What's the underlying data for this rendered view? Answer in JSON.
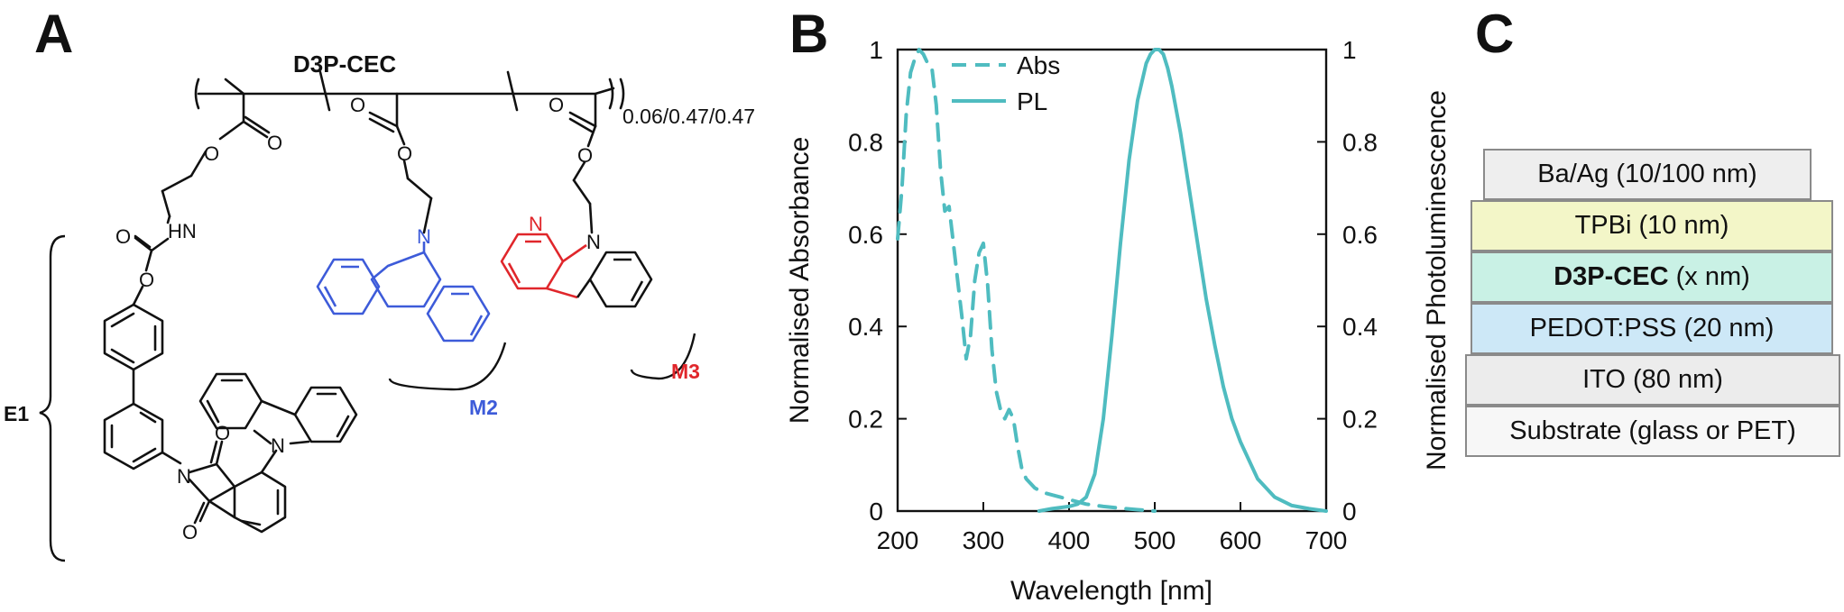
{
  "panels": {
    "a": "A",
    "b": "B",
    "c": "C"
  },
  "panel_a": {
    "polymer_name": "D3P-CEC",
    "ratio": "0.06/0.47/0.47",
    "labels": {
      "e1": "E1",
      "m2": "M2",
      "m3": "M3",
      "hn": "HN",
      "n": "N",
      "o": "O"
    },
    "colors": {
      "e1": "#111111",
      "m2": "#3d5bd9",
      "m3": "#e0262b"
    }
  },
  "chart_data": {
    "type": "line",
    "x_label": "Wavelength [nm]",
    "y_label_left": "Normalised Absorbance",
    "y_label_right": "Normalised Photoluminescence",
    "x_range": [
      200,
      700
    ],
    "y_range": [
      0,
      1
    ],
    "x_ticks": [
      "200",
      "300",
      "400",
      "500",
      "600",
      "700"
    ],
    "y_ticks": [
      "0",
      "0.2",
      "0.4",
      "0.6",
      "0.8",
      "1"
    ],
    "legend_position": "top-left",
    "line_color": "#4fbcc0",
    "series": [
      {
        "name": "Abs",
        "style": "dashed",
        "x": [
          200,
          205,
          210,
          215,
          220,
          225,
          230,
          235,
          240,
          245,
          250,
          255,
          260,
          265,
          270,
          275,
          280,
          285,
          290,
          295,
          300,
          305,
          310,
          315,
          320,
          325,
          330,
          335,
          340,
          345,
          350,
          360,
          370,
          380,
          390,
          400,
          420,
          440,
          460,
          480,
          500
        ],
        "y": [
          0.59,
          0.7,
          0.86,
          0.95,
          0.98,
          1.0,
          0.99,
          0.97,
          0.96,
          0.88,
          0.74,
          0.65,
          0.66,
          0.58,
          0.5,
          0.42,
          0.33,
          0.38,
          0.5,
          0.56,
          0.58,
          0.49,
          0.35,
          0.26,
          0.22,
          0.2,
          0.22,
          0.2,
          0.14,
          0.09,
          0.07,
          0.05,
          0.04,
          0.035,
          0.03,
          0.025,
          0.015,
          0.01,
          0.006,
          0.003,
          0.0
        ]
      },
      {
        "name": "PL",
        "style": "solid",
        "x": [
          365,
          380,
          400,
          410,
          420,
          430,
          440,
          450,
          460,
          470,
          480,
          490,
          495,
          500,
          505,
          510,
          515,
          520,
          530,
          540,
          550,
          560,
          570,
          580,
          590,
          600,
          620,
          640,
          660,
          680,
          700
        ],
        "y": [
          0.0,
          0.005,
          0.01,
          0.015,
          0.03,
          0.08,
          0.2,
          0.38,
          0.58,
          0.76,
          0.89,
          0.97,
          0.99,
          1.0,
          1.0,
          0.99,
          0.96,
          0.92,
          0.82,
          0.7,
          0.58,
          0.46,
          0.36,
          0.27,
          0.2,
          0.15,
          0.07,
          0.03,
          0.012,
          0.005,
          0.0
        ]
      }
    ]
  },
  "panel_c": {
    "layers": [
      {
        "label": "Ba/Ag (10/100 nm)",
        "color": "#eeeeee"
      },
      {
        "label": "TPBi (10 nm)",
        "color": "#f3f6c8"
      },
      {
        "label_bold": "D3P-CEC",
        "label_rest": " (x nm)",
        "color": "#c9f1e5"
      },
      {
        "label": "PEDOT:PSS (20 nm)",
        "color": "#cde8f7"
      },
      {
        "label": "ITO (80 nm)",
        "color": "#ececec"
      },
      {
        "label": "Substrate (glass or PET)",
        "color": "#f7f7f7"
      }
    ]
  }
}
